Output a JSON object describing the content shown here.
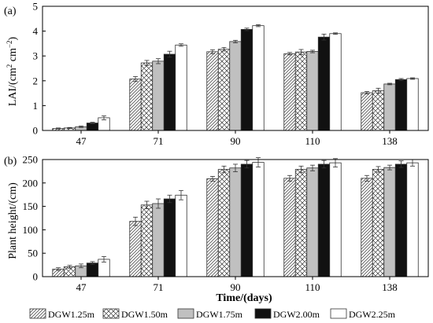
{
  "chart_data": [
    {
      "type": "bar",
      "panel_label": "(a)",
      "title": "",
      "xlabel": "",
      "ylabel": "LAI/(cm² cm⁻²)",
      "ylabel_parts": [
        "LAI/(cm",
        "2",
        " cm",
        "−2",
        ")"
      ],
      "ylim": [
        0,
        5
      ],
      "yticks": [
        0,
        1,
        2,
        3,
        4,
        5
      ],
      "categories": [
        "47",
        "71",
        "90",
        "110",
        "138"
      ],
      "series": [
        {
          "name": "DGW1.25m",
          "values": [
            0.08,
            2.07,
            3.17,
            3.09,
            1.52
          ],
          "errors": [
            0.02,
            0.1,
            0.08,
            0.05,
            0.05
          ]
        },
        {
          "name": "DGW1.50m",
          "values": [
            0.1,
            2.72,
            3.27,
            3.16,
            1.6
          ],
          "errors": [
            0.02,
            0.1,
            0.07,
            0.1,
            0.1
          ]
        },
        {
          "name": "DGW1.75m",
          "values": [
            0.15,
            2.79,
            3.58,
            3.18,
            1.87
          ],
          "errors": [
            0.03,
            0.1,
            0.05,
            0.05,
            0.03
          ]
        },
        {
          "name": "DGW2.00m",
          "values": [
            0.3,
            3.07,
            4.07,
            3.76,
            2.05
          ],
          "errors": [
            0.03,
            0.12,
            0.05,
            0.12,
            0.04
          ]
        },
        {
          "name": "DGW2.25m",
          "values": [
            0.51,
            3.44,
            4.22,
            3.9,
            2.09
          ],
          "errors": [
            0.08,
            0.05,
            0.04,
            0.03,
            0.03
          ]
        }
      ]
    },
    {
      "type": "bar",
      "panel_label": "(b)",
      "title": "",
      "xlabel": "Time/(days)",
      "ylabel": "Plant height/(cm)",
      "ylim": [
        0,
        250
      ],
      "yticks": [
        0,
        50,
        100,
        150,
        200,
        250
      ],
      "categories": [
        "47",
        "71",
        "90",
        "110",
        "138"
      ],
      "series": [
        {
          "name": "DGW1.25m",
          "values": [
            16,
            118,
            209,
            210,
            210
          ],
          "errors": [
            3,
            9,
            5,
            6,
            6
          ]
        },
        {
          "name": "DGW1.50m",
          "values": [
            21,
            153,
            229,
            229,
            229
          ],
          "errors": [
            3,
            8,
            7,
            7,
            6
          ]
        },
        {
          "name": "DGW1.75m",
          "values": [
            23,
            156,
            232,
            232,
            233
          ],
          "errors": [
            4,
            10,
            8,
            6,
            5
          ]
        },
        {
          "name": "DGW2.00m",
          "values": [
            29,
            166,
            240,
            240,
            240
          ],
          "errors": [
            3,
            8,
            8,
            8,
            7
          ]
        },
        {
          "name": "DGW2.25m",
          "values": [
            37,
            174,
            244,
            243,
            243
          ],
          "errors": [
            6,
            10,
            10,
            9,
            7
          ]
        }
      ]
    }
  ],
  "legend": {
    "placement": "bottom",
    "items": [
      {
        "label": "DGW1.25m",
        "fill": "diagonal-hatch"
      },
      {
        "label": "DGW1.50m",
        "fill": "crosshatch"
      },
      {
        "label": "DGW1.75m",
        "fill": "#c0c0c0"
      },
      {
        "label": "DGW2.00m",
        "fill": "#111111"
      },
      {
        "label": "DGW2.25m",
        "fill": "#ffffff"
      }
    ]
  },
  "colors": {
    "axis": "#000000",
    "bar_stroke": "#333333",
    "gray_bar": "#c0c0c0",
    "black_bar": "#111111"
  }
}
